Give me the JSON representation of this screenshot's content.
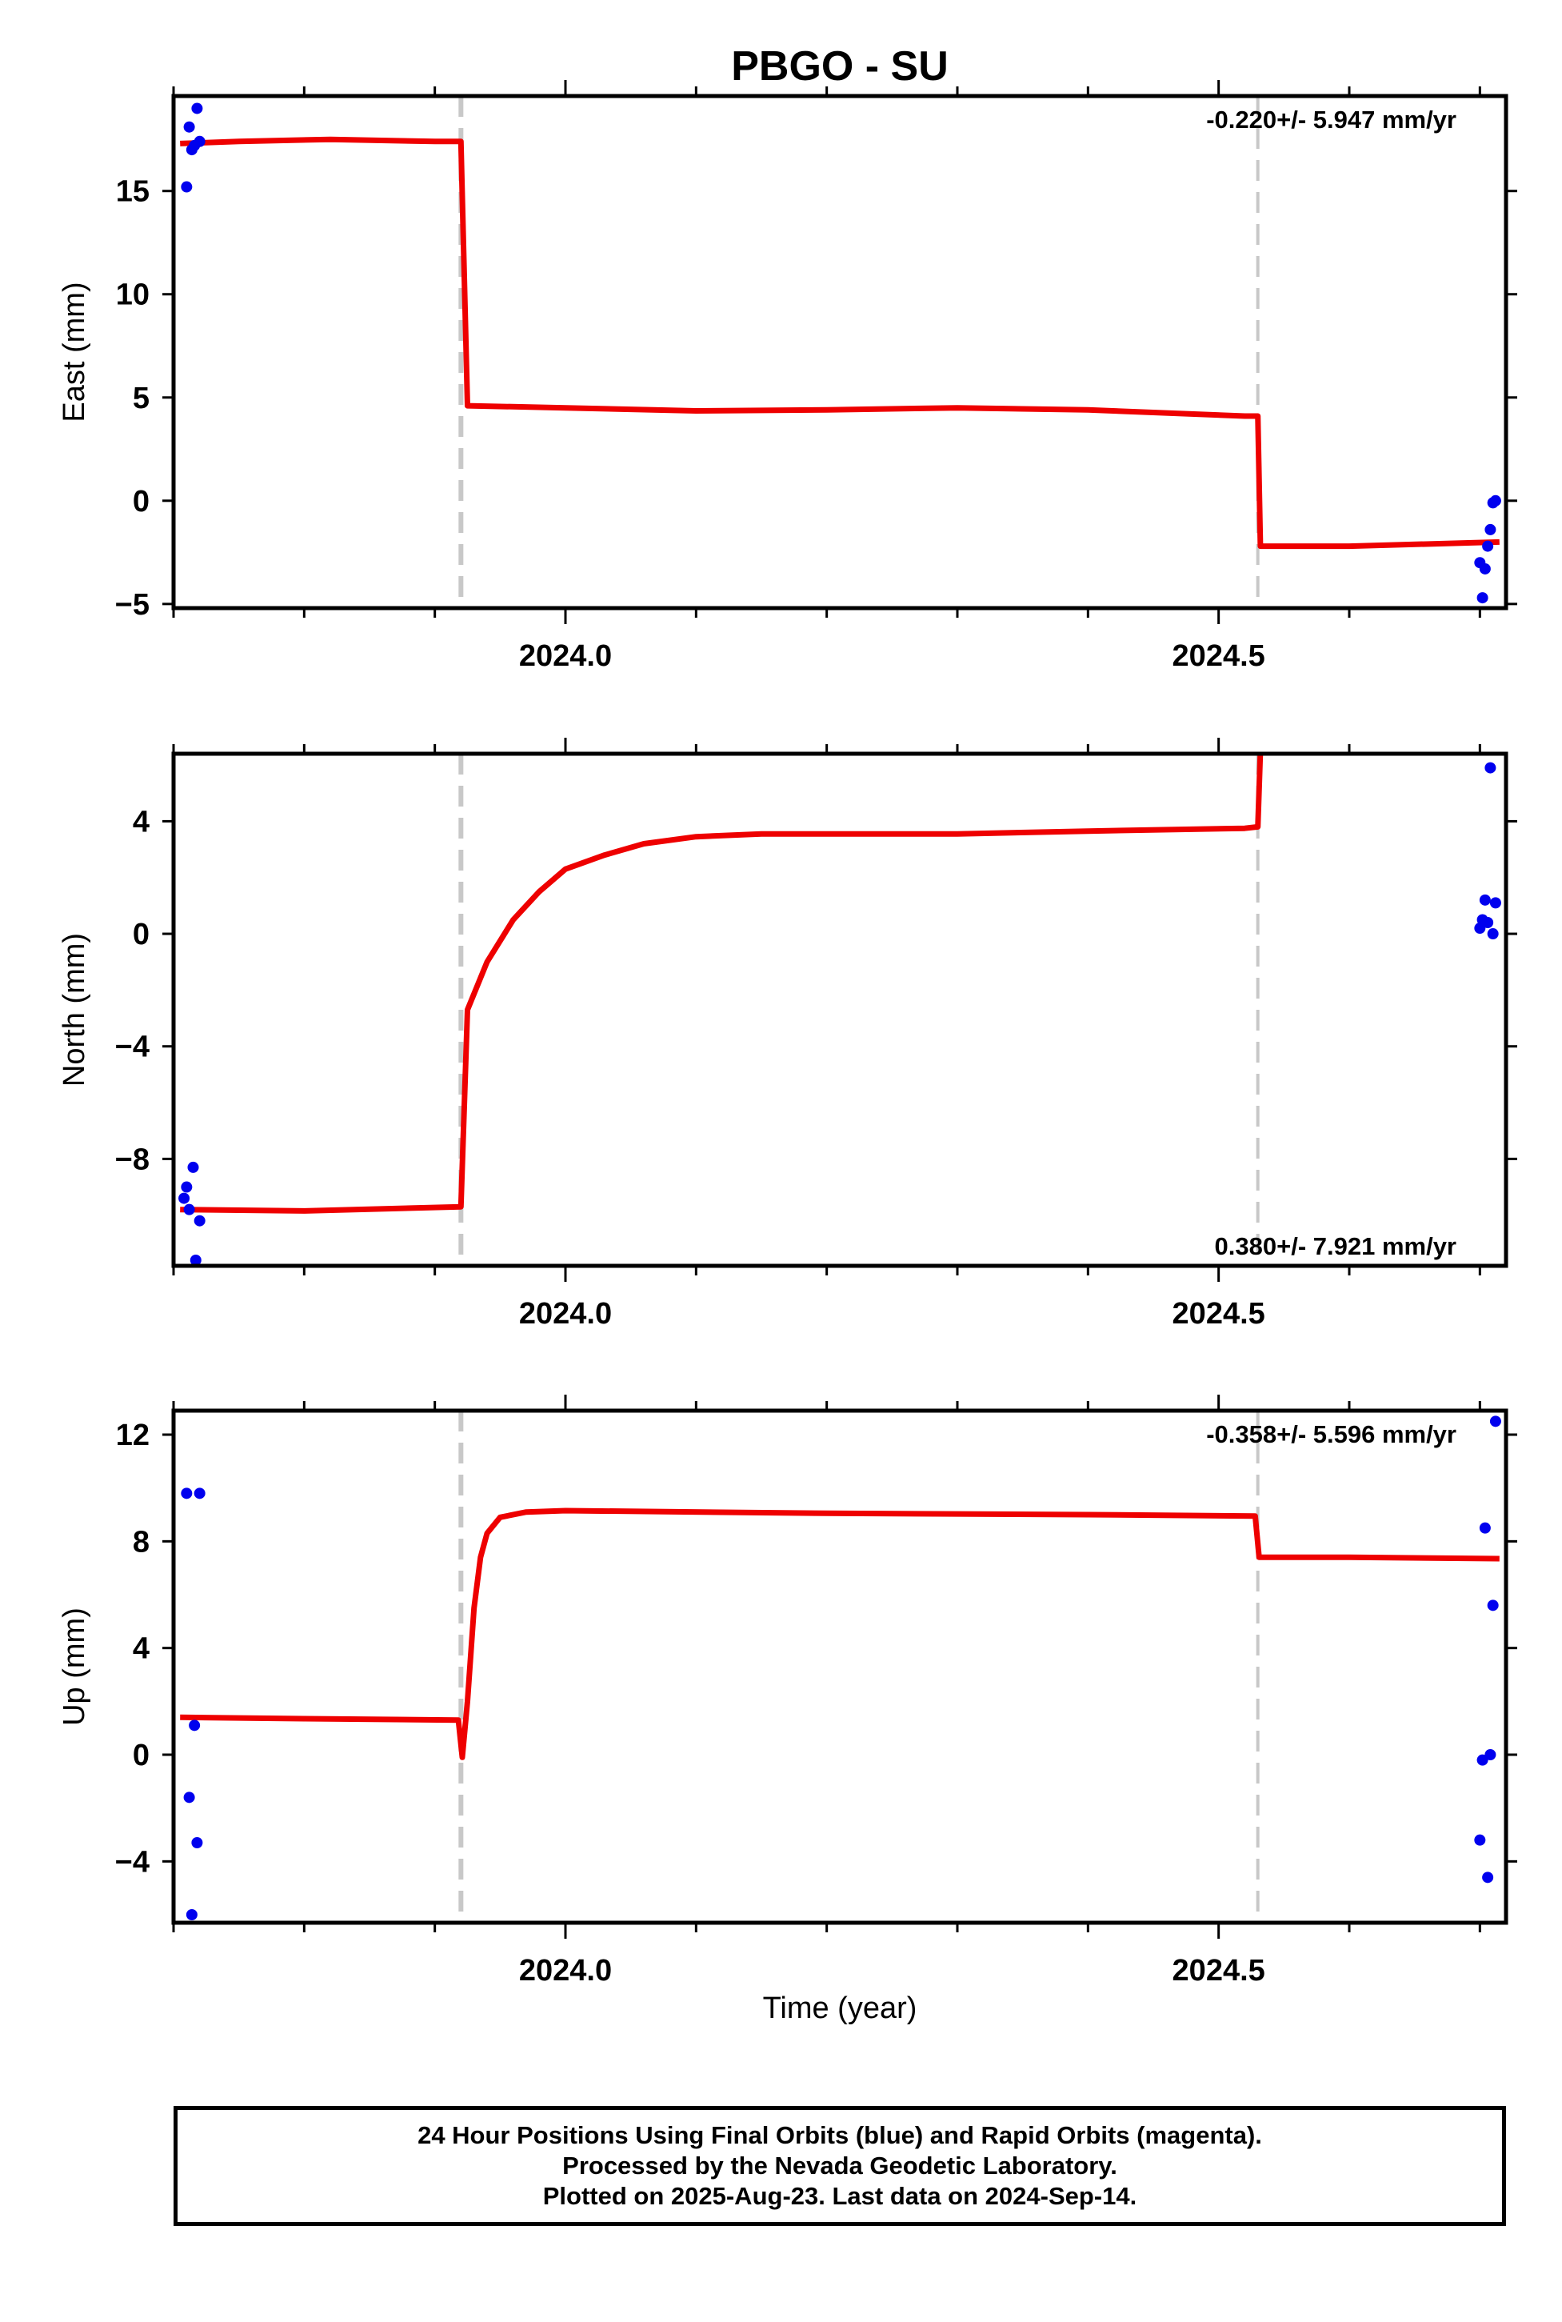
{
  "chart_data": {
    "title": "PBGO - SU",
    "xlabel": "Time (year)",
    "xlim": [
      2023.7,
      2024.72
    ],
    "x_ticks": [
      "2024.0",
      "2024.5"
    ],
    "break_lines": [
      2023.92,
      2024.53
    ],
    "colors": {
      "data": "#0000ee",
      "model": "#ee0000",
      "break": "#c8c8c8"
    },
    "panels": [
      {
        "name": "east",
        "type": "scatter",
        "ylabel": "East (mm)",
        "ylim": [
          -5.2,
          19.6
        ],
        "y_ticks": [
          -5,
          0,
          5,
          10,
          15
        ],
        "y_tick_labels": [
          "−5",
          "0",
          "5",
          "10",
          "15"
        ],
        "rate": "-0.220+/- 5.947 mm/yr",
        "rate_position": "top-right",
        "points": [
          {
            "x": 2023.71,
            "y": 15.2
          },
          {
            "x": 2023.712,
            "y": 18.1
          },
          {
            "x": 2023.714,
            "y": 17.0
          },
          {
            "x": 2023.716,
            "y": 17.2
          },
          {
            "x": 2023.718,
            "y": 19.0
          },
          {
            "x": 2023.72,
            "y": 17.4
          },
          {
            "x": 2024.7,
            "y": -3.0
          },
          {
            "x": 2024.702,
            "y": -4.7
          },
          {
            "x": 2024.704,
            "y": -3.3
          },
          {
            "x": 2024.706,
            "y": -2.2
          },
          {
            "x": 2024.708,
            "y": -1.4
          },
          {
            "x": 2024.71,
            "y": -0.1
          },
          {
            "x": 2024.712,
            "y": 0.0
          }
        ],
        "model": [
          {
            "x": 2023.705,
            "y": 17.3
          },
          {
            "x": 2023.75,
            "y": 17.4
          },
          {
            "x": 2023.82,
            "y": 17.5
          },
          {
            "x": 2023.9,
            "y": 17.4
          },
          {
            "x": 2023.92,
            "y": 17.4
          },
          {
            "x": 2023.925,
            "y": 4.6
          },
          {
            "x": 2024.0,
            "y": 4.5
          },
          {
            "x": 2024.1,
            "y": 4.35
          },
          {
            "x": 2024.2,
            "y": 4.4
          },
          {
            "x": 2024.3,
            "y": 4.5
          },
          {
            "x": 2024.4,
            "y": 4.4
          },
          {
            "x": 2024.52,
            "y": 4.1
          },
          {
            "x": 2024.53,
            "y": 4.1
          },
          {
            "x": 2024.532,
            "y": -2.2
          },
          {
            "x": 2024.6,
            "y": -2.2
          },
          {
            "x": 2024.715,
            "y": -2.0
          }
        ]
      },
      {
        "name": "north",
        "type": "scatter",
        "ylabel": "North (mm)",
        "ylim": [
          -11.8,
          6.4
        ],
        "y_ticks": [
          -8,
          -4,
          0,
          4
        ],
        "y_tick_labels": [
          "−8",
          "−4",
          "0",
          "4"
        ],
        "rate": "0.380+/- 7.921 mm/yr",
        "rate_position": "bottom-right",
        "points": [
          {
            "x": 2023.708,
            "y": -9.4
          },
          {
            "x": 2023.71,
            "y": -9.0
          },
          {
            "x": 2023.712,
            "y": -9.8
          },
          {
            "x": 2023.715,
            "y": -8.3
          },
          {
            "x": 2023.717,
            "y": -11.6
          },
          {
            "x": 2023.72,
            "y": -10.2
          },
          {
            "x": 2024.7,
            "y": 0.2
          },
          {
            "x": 2024.702,
            "y": 0.5
          },
          {
            "x": 2024.704,
            "y": 1.2
          },
          {
            "x": 2024.706,
            "y": 0.4
          },
          {
            "x": 2024.708,
            "y": 5.9
          },
          {
            "x": 2024.71,
            "y": 0.0
          },
          {
            "x": 2024.712,
            "y": 1.1
          }
        ],
        "model": [
          {
            "x": 2023.705,
            "y": -9.8
          },
          {
            "x": 2023.8,
            "y": -9.85
          },
          {
            "x": 2023.92,
            "y": -9.7
          },
          {
            "x": 2023.925,
            "y": -2.7
          },
          {
            "x": 2023.94,
            "y": -1.0
          },
          {
            "x": 2023.96,
            "y": 0.5
          },
          {
            "x": 2023.98,
            "y": 1.5
          },
          {
            "x": 2024.0,
            "y": 2.3
          },
          {
            "x": 2024.03,
            "y": 2.8
          },
          {
            "x": 2024.06,
            "y": 3.2
          },
          {
            "x": 2024.1,
            "y": 3.45
          },
          {
            "x": 2024.15,
            "y": 3.55
          },
          {
            "x": 2024.2,
            "y": 3.55
          },
          {
            "x": 2024.3,
            "y": 3.55
          },
          {
            "x": 2024.4,
            "y": 3.65
          },
          {
            "x": 2024.52,
            "y": 3.75
          },
          {
            "x": 2024.53,
            "y": 3.8
          },
          {
            "x": 2024.532,
            "y": 6.5
          }
        ]
      },
      {
        "name": "up",
        "type": "scatter",
        "ylabel": "Up (mm)",
        "ylim": [
          -6.3,
          12.9
        ],
        "y_ticks": [
          -4,
          0,
          4,
          8,
          12
        ],
        "y_tick_labels": [
          "−4",
          "0",
          "4",
          "8",
          "12"
        ],
        "rate": "-0.358+/- 5.596 mm/yr",
        "rate_position": "top-right",
        "points": [
          {
            "x": 2023.71,
            "y": 9.8
          },
          {
            "x": 2023.712,
            "y": -1.6
          },
          {
            "x": 2023.714,
            "y": -6.0
          },
          {
            "x": 2023.716,
            "y": 1.1
          },
          {
            "x": 2023.718,
            "y": -3.3
          },
          {
            "x": 2023.72,
            "y": 9.8
          },
          {
            "x": 2024.7,
            "y": -3.2
          },
          {
            "x": 2024.702,
            "y": -0.2
          },
          {
            "x": 2024.704,
            "y": 8.5
          },
          {
            "x": 2024.706,
            "y": -4.6
          },
          {
            "x": 2024.708,
            "y": 0.0
          },
          {
            "x": 2024.71,
            "y": 5.6
          },
          {
            "x": 2024.712,
            "y": 12.5
          }
        ],
        "model": [
          {
            "x": 2023.705,
            "y": 1.4
          },
          {
            "x": 2023.8,
            "y": 1.35
          },
          {
            "x": 2023.918,
            "y": 1.3
          },
          {
            "x": 2023.921,
            "y": -0.1
          },
          {
            "x": 2023.925,
            "y": 2.0
          },
          {
            "x": 2023.93,
            "y": 5.5
          },
          {
            "x": 2023.935,
            "y": 7.4
          },
          {
            "x": 2023.94,
            "y": 8.3
          },
          {
            "x": 2023.95,
            "y": 8.9
          },
          {
            "x": 2023.97,
            "y": 9.1
          },
          {
            "x": 2024.0,
            "y": 9.15
          },
          {
            "x": 2024.2,
            "y": 9.05
          },
          {
            "x": 2024.4,
            "y": 9.0
          },
          {
            "x": 2024.528,
            "y": 8.95
          },
          {
            "x": 2024.531,
            "y": 7.4
          },
          {
            "x": 2024.6,
            "y": 7.4
          },
          {
            "x": 2024.715,
            "y": 7.35
          }
        ]
      }
    ]
  },
  "footer": {
    "line1": "24 Hour Positions Using Final Orbits (blue) and Rapid Orbits (magenta).",
    "line2": "Processed by the Nevada Geodetic Laboratory.",
    "line3": "Plotted on 2025-Aug-23. Last data on 2024-Sep-14."
  }
}
